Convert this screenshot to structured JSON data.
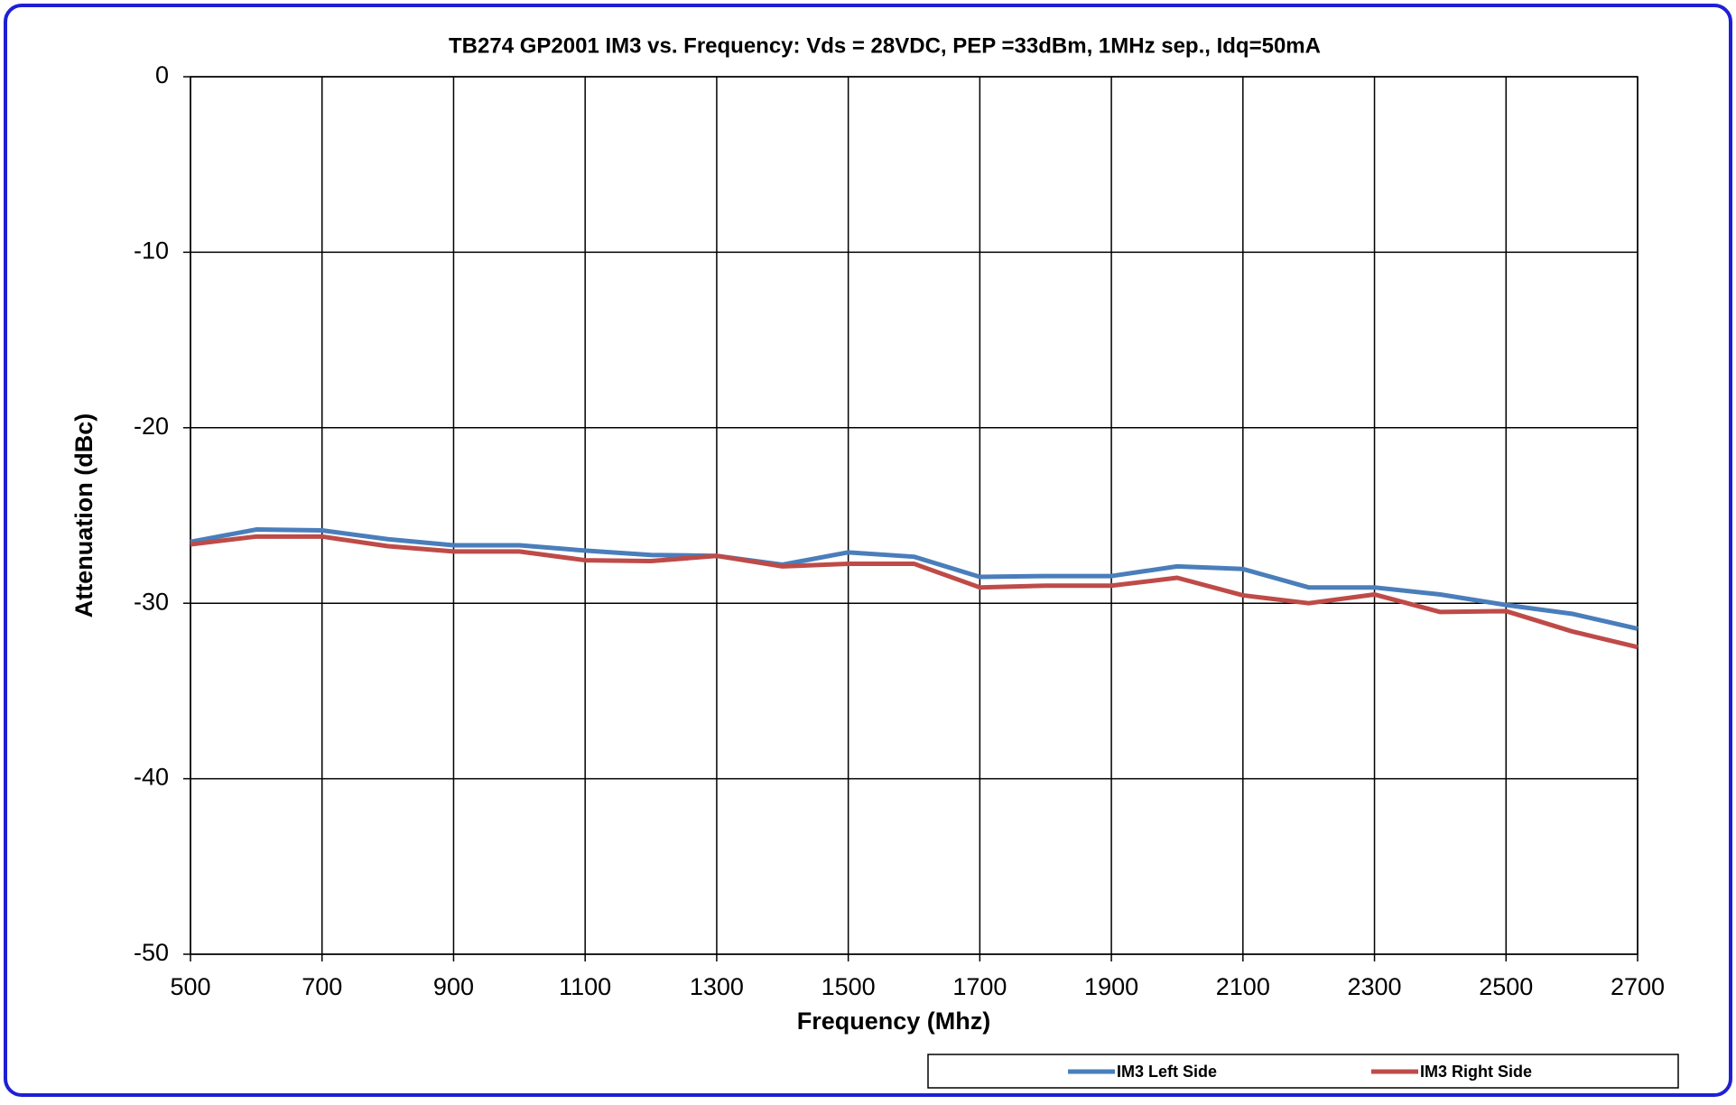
{
  "chart_data": {
    "type": "line",
    "title": "TB274 GP2001 IM3 vs. Frequency:  Vds = 28VDC, PEP =33dBm, 1MHz sep.,  Idq=50mA",
    "x_label": "Frequency (Mhz)",
    "y_label": "Attenuation (dBc)",
    "x": [
      500,
      600,
      700,
      800,
      900,
      1000,
      1100,
      1200,
      1300,
      1400,
      1500,
      1600,
      1700,
      1800,
      1900,
      2000,
      2100,
      2200,
      2300,
      2400,
      2500,
      2600,
      2700
    ],
    "series": [
      {
        "name": "IM3 Left Side",
        "color": "#4a7ebb",
        "values": [
          -26.5,
          -25.8,
          -25.85,
          -26.35,
          -26.7,
          -26.7,
          -27.0,
          -27.25,
          -27.3,
          -27.8,
          -27.1,
          -27.35,
          -28.5,
          -28.45,
          -28.45,
          -27.9,
          -28.05,
          -29.1,
          -29.1,
          -29.5,
          -30.1,
          -30.6,
          -31.45
        ]
      },
      {
        "name": "IM3 Right Side",
        "color": "#be4b48",
        "values": [
          -26.65,
          -26.2,
          -26.2,
          -26.75,
          -27.05,
          -27.05,
          -27.55,
          -27.6,
          -27.3,
          -27.9,
          -27.75,
          -27.75,
          -29.1,
          -29.0,
          -29.0,
          -28.55,
          -29.55,
          -30.0,
          -29.5,
          -30.5,
          -30.45,
          -31.6,
          -32.5
        ]
      }
    ],
    "xlim": [
      500,
      2700
    ],
    "xticks": [
      500,
      700,
      900,
      1100,
      1300,
      1500,
      1700,
      1900,
      2100,
      2300,
      2500,
      2700
    ],
    "ylim": [
      -50,
      0
    ],
    "yticks": [
      -50,
      -40,
      -30,
      -20,
      -10,
      0
    ],
    "grid": true,
    "legend": "bottom"
  }
}
